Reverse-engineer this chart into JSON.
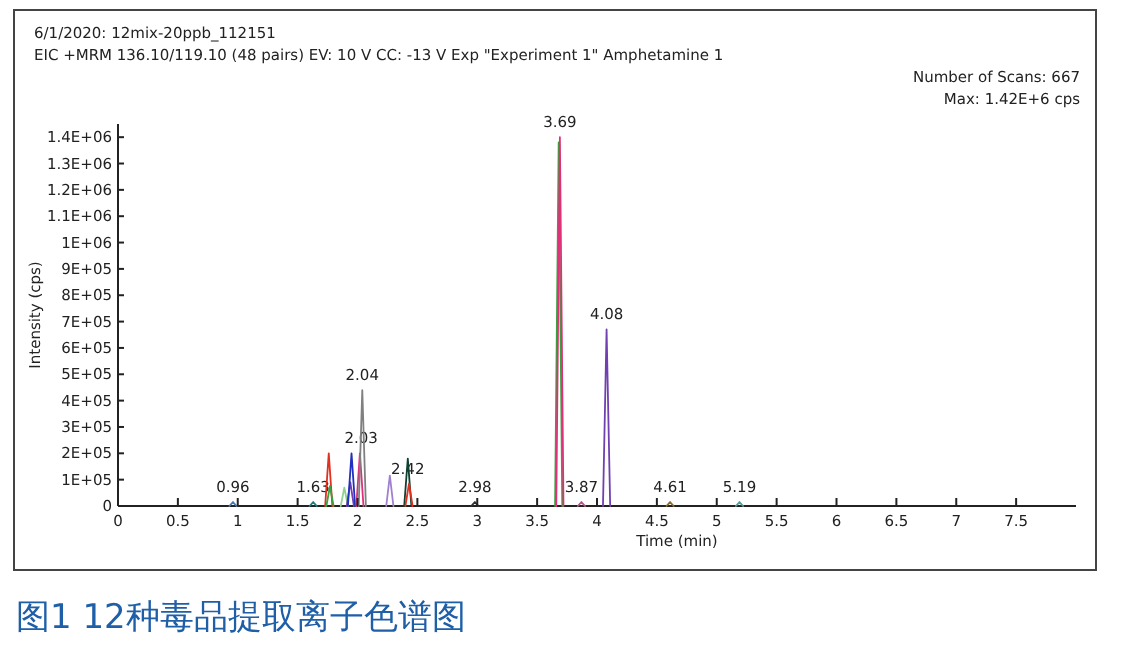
{
  "chart_data": {
    "type": "line",
    "title": "6/1/2020: 12mix-20ppb_112151",
    "subtitle": "EIC +MRM 136.10/119.10 (48 pairs) EV: 10 V CC: -13 V Exp \"Experiment 1\" Amphetamine 1",
    "xlabel": "Time (min)",
    "ylabel": "Intensity (cps)",
    "xlim": [
      0,
      8
    ],
    "ylim": [
      0,
      1450000
    ],
    "xticks": [
      0,
      0.5,
      1,
      1.5,
      2,
      2.5,
      3,
      3.5,
      4,
      4.5,
      5,
      5.5,
      6,
      6.5,
      7,
      7.5
    ],
    "yticks": [
      0,
      {
        "value": 100000,
        "label": "1E+05"
      },
      {
        "value": 200000,
        "label": "2E+05"
      },
      {
        "value": 300000,
        "label": "3E+05"
      },
      {
        "value": 400000,
        "label": "4E+05"
      },
      {
        "value": 500000,
        "label": "5E+05"
      },
      {
        "value": 600000,
        "label": "6E+05"
      },
      {
        "value": 700000,
        "label": "7E+05"
      },
      {
        "value": 800000,
        "label": "8E+05"
      },
      {
        "value": 900000,
        "label": "9E+05"
      },
      {
        "value": 1000000,
        "label": "1E+06"
      },
      {
        "value": 1100000,
        "label": "1.1E+06"
      },
      {
        "value": 1200000,
        "label": "1.2E+06"
      },
      {
        "value": 1300000,
        "label": "1.3E+06"
      },
      {
        "value": 1400000,
        "label": "1.4E+06"
      }
    ],
    "grid": false,
    "marker": "none",
    "series": [
      {
        "color": "#4a78b0",
        "x": [
          0.93,
          0.96,
          0.99
        ],
        "values": [
          0,
          15000,
          0
        ]
      },
      {
        "color": "#208080",
        "x": [
          1.6,
          1.63,
          1.66
        ],
        "values": [
          0,
          15000,
          0
        ]
      },
      {
        "color": "#e03020",
        "x": [
          1.73,
          1.76,
          1.79
        ],
        "values": [
          0,
          200000,
          0
        ]
      },
      {
        "color": "#3aa040",
        "x": [
          1.74,
          1.77,
          1.8
        ],
        "values": [
          0,
          75000,
          0
        ]
      },
      {
        "color": "#90d090",
        "x": [
          1.86,
          1.89,
          1.92
        ],
        "values": [
          0,
          70000,
          0
        ]
      },
      {
        "color": "#7040b0",
        "x": [
          1.91,
          1.94,
          1.97
        ],
        "values": [
          0,
          90000,
          0
        ]
      },
      {
        "color": "#2030c0",
        "x": [
          1.92,
          1.95,
          1.98
        ],
        "values": [
          0,
          200000,
          0
        ]
      },
      {
        "color": "#e0307a",
        "x": [
          1.99,
          2.02,
          2.05
        ],
        "values": [
          0,
          200000,
          0
        ]
      },
      {
        "color": "#808080",
        "x": [
          2.01,
          2.04,
          2.07
        ],
        "values": [
          0,
          440000,
          0
        ]
      },
      {
        "color": "#a080d0",
        "x": [
          2.24,
          2.27,
          2.3
        ],
        "values": [
          0,
          115000,
          0
        ]
      },
      {
        "color": "#104030",
        "x": [
          2.39,
          2.42,
          2.45
        ],
        "values": [
          0,
          180000,
          0
        ]
      },
      {
        "color": "#e03020",
        "x": [
          2.4,
          2.43,
          2.46
        ],
        "values": [
          0,
          85000,
          0
        ]
      },
      {
        "color": "#3aa040",
        "x": [
          3.65,
          3.68,
          3.71
        ],
        "values": [
          0,
          1380000,
          0
        ]
      },
      {
        "color": "#e0307a",
        "x": [
          3.66,
          3.69,
          3.72
        ],
        "values": [
          0,
          1400000,
          0
        ]
      },
      {
        "color": "#303030",
        "x": [
          2.95,
          2.98,
          3.01
        ],
        "values": [
          0,
          15000,
          0
        ]
      },
      {
        "color": "#b05a8a",
        "x": [
          3.84,
          3.87,
          3.9
        ],
        "values": [
          0,
          15000,
          0
        ]
      },
      {
        "color": "#7040b0",
        "x": [
          4.05,
          4.08,
          4.11
        ],
        "values": [
          0,
          670000,
          0
        ]
      },
      {
        "color": "#8a6a30",
        "x": [
          4.58,
          4.61,
          4.64
        ],
        "values": [
          0,
          15000,
          0
        ]
      },
      {
        "color": "#5a9a9a",
        "x": [
          5.16,
          5.19,
          5.22
        ],
        "values": [
          0,
          15000,
          0
        ]
      }
    ],
    "annotations": [
      "Number of Scans: 667",
      "Max: 1.42E+6 cps",
      "图1 12种毒品提取离子色谱图",
      {
        "text": "0.96",
        "x": 0.96,
        "y": 15000
      },
      {
        "text": "1.63",
        "x": 1.63,
        "y": 15000
      },
      {
        "text": "2.03",
        "x": 2.03,
        "y": 200000
      },
      {
        "text": "2.04",
        "x": 2.04,
        "y": 440000
      },
      {
        "text": "2.42",
        "x": 2.42,
        "y": 85000
      },
      {
        "text": "2.98",
        "x": 2.98,
        "y": 15000
      },
      {
        "text": "3.69",
        "x": 3.69,
        "y": 1400000
      },
      {
        "text": "3.87",
        "x": 3.87,
        "y": 15000
      },
      {
        "text": "4.08",
        "x": 4.08,
        "y": 670000
      },
      {
        "text": "4.61",
        "x": 4.61,
        "y": 15000
      },
      {
        "text": "5.19",
        "x": 5.19,
        "y": 15000
      }
    ]
  }
}
